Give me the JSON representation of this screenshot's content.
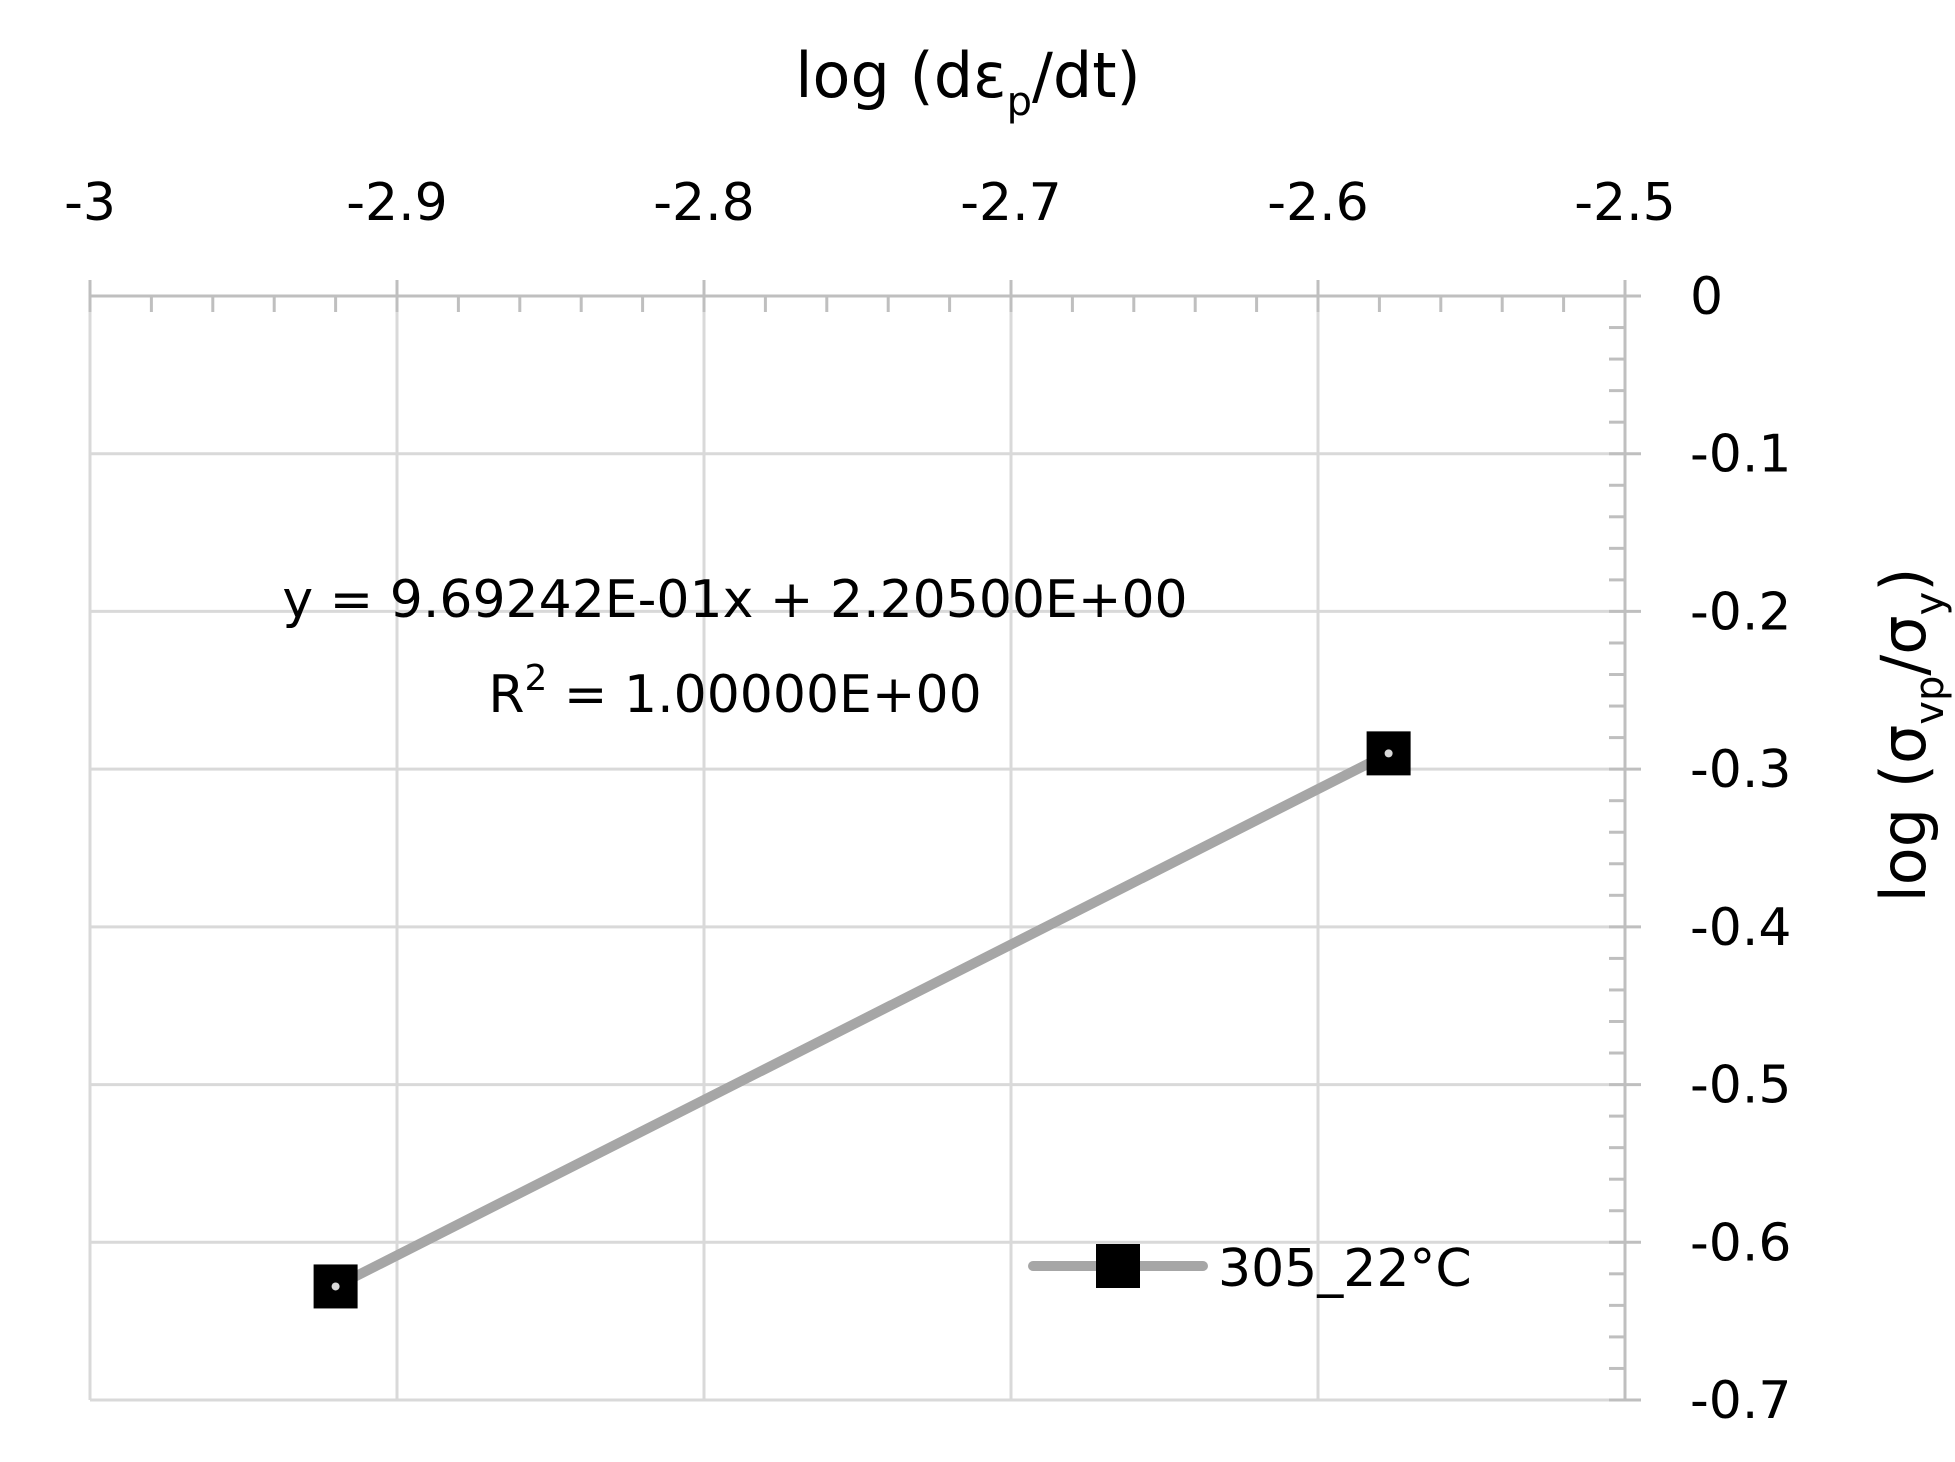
{
  "chart_data": {
    "type": "line",
    "x_axis_title": {
      "main": "log (dε",
      "sub": "p",
      "tail": "/dt)"
    },
    "y_axis_title": {
      "part1": "log (σ",
      "sub1": "vp",
      "part2": "/σ",
      "sub2": "y",
      "part3": ")"
    },
    "xlim": [
      -3,
      -2.5
    ],
    "ylim": [
      -0.7,
      0
    ],
    "x_ticks": [
      -3,
      -2.9,
      -2.8,
      -2.7,
      -2.6,
      -2.5
    ],
    "x_tick_labels": [
      "-3",
      "-2.9",
      "-2.8",
      "-2.7",
      "-2.6",
      "-2.5"
    ],
    "y_ticks": [
      0,
      -0.1,
      -0.2,
      -0.3,
      -0.4,
      -0.5,
      -0.6,
      -0.7
    ],
    "y_tick_labels": [
      "0",
      "-0.1",
      "-0.2",
      "-0.3",
      "-0.4",
      "-0.5",
      "-0.6",
      "-0.7"
    ],
    "grid": true,
    "x_axis_position": "top",
    "y_axis_position": "right",
    "series": [
      {
        "name": "305_22°C",
        "color": "#a6a6a6",
        "marker": "square",
        "marker_color": "#000000",
        "x": [
          -2.92,
          -2.577
        ],
        "y": [
          -0.628,
          -0.29
        ]
      }
    ],
    "trendline": {
      "equation": "y = 9.69242E-01x + 2.20500E+00",
      "r2_label": "R",
      "r2_sup": "2",
      "r2_value": " = 1.00000E+00"
    },
    "legend": {
      "position": "bottom-right",
      "entries": [
        "305_22°C"
      ]
    }
  }
}
